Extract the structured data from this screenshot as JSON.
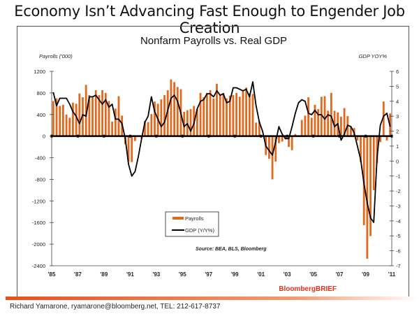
{
  "headline": "Economy Isn’t Advancing Fast Enough to Engender Job Creation",
  "footer": "Richard Yamarone, ryamarone@bloomberg.net, TEL: 212-617-8737",
  "accent_bar_color": "#e8501a",
  "chart_data": {
    "type": "bar+line",
    "title": "Nonfarm Payrolls vs. Real GDP",
    "ylabel_left": "Payrolls ('000)",
    "ylabel_right": "GDP YOY%",
    "ylim_left": [
      -2400,
      1200
    ],
    "ylim_right": [
      -7,
      6
    ],
    "yticks_left": [
      "1200",
      "800",
      "400",
      "0",
      "-400",
      "-800",
      "-1200",
      "-1600",
      "-2000",
      "-2400"
    ],
    "yticks_right": [
      "6",
      "5",
      "4",
      "3",
      "2",
      "1",
      "0",
      "-1",
      "-2",
      "-3",
      "-4",
      "-5",
      "-6",
      "-7"
    ],
    "xticks": [
      "'85",
      "'87",
      "'89",
      "'91",
      "'93",
      "'95",
      "'97",
      "'99",
      "'01",
      "'03",
      "'05",
      "'07",
      "'09",
      "'11"
    ],
    "xlim": [
      1985,
      2011
    ],
    "grid": false,
    "legend_placement": "center-bottom",
    "source": "Source: BEA, BLS, Bloomberg",
    "brand": "BloombergBRIEF",
    "frequency": "quarterly, 1985Q1-2010Q4",
    "series": [
      {
        "name": "Payrolls",
        "type": "bar",
        "axis": "left",
        "color": "#e0691e",
        "values": [
          650,
          700,
          560,
          580,
          400,
          340,
          620,
          600,
          790,
          720,
          950,
          760,
          740,
          850,
          760,
          850,
          800,
          650,
          270,
          510,
          740,
          380,
          -150,
          -470,
          -480,
          -90,
          10,
          -50,
          280,
          260,
          410,
          640,
          600,
          680,
          760,
          850,
          1050,
          1000,
          910,
          870,
          450,
          480,
          500,
          560,
          500,
          800,
          720,
          800,
          850,
          700,
          970,
          780,
          800,
          700,
          750,
          760,
          800,
          730,
          850,
          900,
          790,
          780,
          250,
          270,
          -10,
          -350,
          -420,
          -800,
          -470,
          -130,
          -100,
          -60,
          -200,
          -260,
          40,
          10,
          300,
          380,
          720,
          340,
          580,
          500,
          730,
          740,
          470,
          800,
          470,
          440,
          360,
          520,
          370,
          180,
          150,
          -80,
          -480,
          -1650,
          -2270,
          -1850,
          -1000,
          -500,
          -110,
          640,
          -80,
          420
        ]
      },
      {
        "name": "GDP (Y/Y%)",
        "type": "line",
        "axis": "right",
        "color": "#000000",
        "values": [
          4.6,
          3.7,
          4.2,
          4.2,
          4.2,
          3.8,
          3.3,
          3.0,
          2.5,
          3.1,
          3.0,
          4.3,
          4.3,
          4.4,
          4.1,
          3.8,
          4.1,
          3.6,
          3.8,
          2.8,
          2.8,
          2.5,
          1.5,
          -0.2,
          -1.0,
          -0.7,
          0.3,
          1.5,
          2.6,
          3.0,
          4.3,
          3.3,
          2.8,
          2.3,
          2.6,
          3.4,
          4.2,
          4.4,
          4.0,
          3.2,
          2.3,
          2.5,
          2.0,
          2.5,
          3.5,
          4.0,
          4.1,
          4.5,
          4.5,
          4.3,
          4.7,
          4.4,
          4.5,
          3.9,
          4.0,
          4.9,
          4.9,
          4.8,
          4.7,
          4.8,
          4.3,
          5.3,
          3.7,
          2.6,
          2.0,
          1.0,
          0.7,
          0.4,
          1.3,
          2.3,
          1.8,
          1.5,
          1.5,
          2.3,
          3.2,
          3.9,
          4.1,
          4.0,
          3.2,
          3.1,
          3.4,
          3.1,
          3.1,
          2.8,
          3.1,
          3.0,
          2.3,
          2.5,
          1.4,
          1.8,
          2.4,
          2.3,
          1.9,
          1.0,
          0.1,
          -1.5,
          -2.8,
          -3.8,
          -4.1,
          0.2,
          2.4,
          3.0,
          3.2,
          2.3
        ]
      }
    ]
  }
}
